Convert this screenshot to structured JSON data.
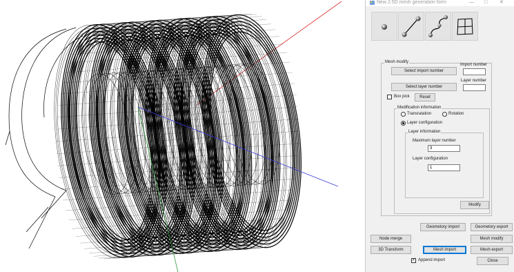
{
  "window": {
    "title": "New 2.5D mesh generation form",
    "minimize_glyph": "—",
    "maximize_glyph": "□",
    "close_glyph": "✕"
  },
  "toolbar": {
    "tools": [
      {
        "icon": "point-tool-icon"
      },
      {
        "icon": "line-tool-icon"
      },
      {
        "icon": "curve-tool-icon"
      },
      {
        "icon": "surface-tool-icon"
      }
    ]
  },
  "mesh_modify": {
    "title": "Mesh modify",
    "select_import_label": "Select import number",
    "import_number_label": "Import number",
    "import_number_value": "",
    "select_layer_label": "Select layer number",
    "layer_number_label": "Layer number",
    "layer_number_value": "",
    "box_pick_label": "Box pick",
    "box_pick_checked": false,
    "reset_label": "Reset",
    "modification": {
      "title": "Modification information",
      "translation_label": "Transratation",
      "rotation_label": "Rotation",
      "layer_configuration_label": "Layer configuration",
      "selected": "layer_configuration",
      "layer_info": {
        "title": "Layer information",
        "max_layer_label": "Maximum layer number",
        "max_layer_value": "3",
        "layer_config_label": "Layer configuration",
        "layer_config_value": "1"
      }
    },
    "modify_label": "Modify"
  },
  "actions": {
    "geometry_import": "Geometory import",
    "geometry_export": "Geometory export",
    "node_merge": "Node merge",
    "mesh_modify": "Mesh modify",
    "transform_3d": "3D Transform",
    "mesh_import": "Mesh import",
    "mesh_export": "Mesh export",
    "append_import": "Append import",
    "append_import_checked": true,
    "close": "Close"
  },
  "viewport": {
    "axis_colors": {
      "x": "#e03030",
      "y": "#2f9a3a",
      "z": "#3a3ae0"
    },
    "mesh_color": "#000000"
  }
}
